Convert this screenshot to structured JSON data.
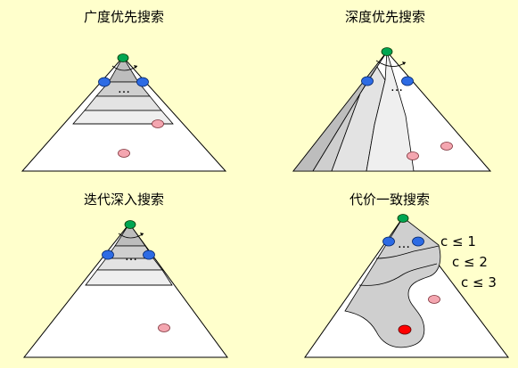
{
  "panels": {
    "bfs": {
      "title": "广度优先搜索"
    },
    "dfs": {
      "title": "深度优先搜索"
    },
    "ids": {
      "title": "迭代深入搜索"
    },
    "ucs": {
      "title": "代价一致搜索",
      "cost_labels": [
        "c ≤ 1",
        "c ≤ 2",
        "c ≤ 3"
      ]
    }
  },
  "ellipsis": "…",
  "colors": {
    "background": "#ffffcc",
    "start_node": "#00a651",
    "frontier_node": "#2d6be4",
    "goal_node": "#f4a6b0",
    "found_goal": "#ff0000"
  }
}
